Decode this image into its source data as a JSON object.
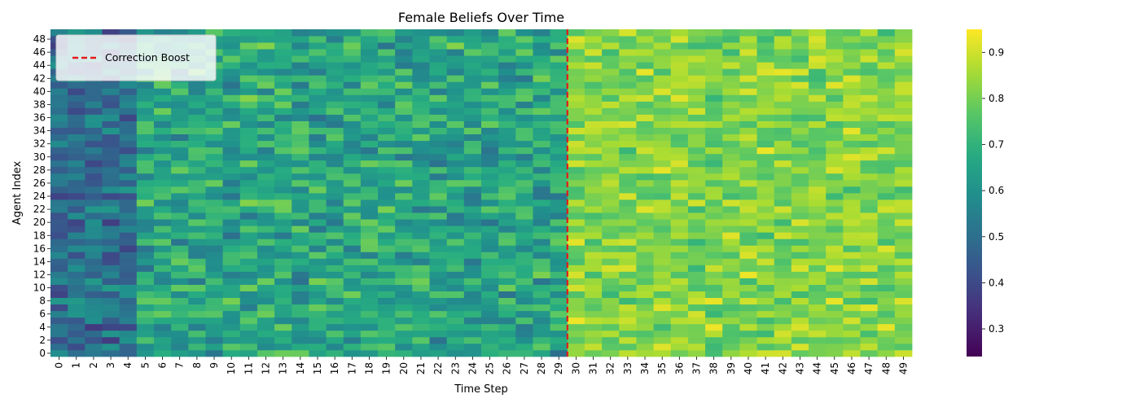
{
  "chart_data": {
    "type": "heatmap",
    "title": "Female Beliefs Over Time",
    "xlabel": "Time Step",
    "ylabel": "Agent Index",
    "x": [
      0,
      1,
      2,
      3,
      4,
      5,
      6,
      7,
      8,
      9,
      10,
      11,
      12,
      13,
      14,
      15,
      16,
      17,
      18,
      19,
      20,
      21,
      22,
      23,
      24,
      25,
      26,
      27,
      28,
      29,
      30,
      31,
      32,
      33,
      34,
      35,
      36,
      37,
      38,
      39,
      40,
      41,
      42,
      43,
      44,
      45,
      46,
      47,
      48,
      49
    ],
    "y": [
      0,
      1,
      2,
      3,
      4,
      5,
      6,
      7,
      8,
      9,
      10,
      11,
      12,
      13,
      14,
      15,
      16,
      17,
      18,
      19,
      20,
      21,
      22,
      23,
      24,
      25,
      26,
      27,
      28,
      29,
      30,
      31,
      32,
      33,
      34,
      35,
      36,
      37,
      38,
      39,
      40,
      41,
      42,
      43,
      44,
      45,
      46,
      47,
      48,
      49
    ],
    "ytick_labels": [
      "0",
      "2",
      "4",
      "6",
      "8",
      "10",
      "12",
      "14",
      "16",
      "18",
      "20",
      "22",
      "24",
      "26",
      "28",
      "30",
      "32",
      "34",
      "36",
      "38",
      "40",
      "42",
      "44",
      "46",
      "48"
    ],
    "value_range": [
      0.24,
      0.95
    ],
    "colorbar_ticks": [
      "0.3",
      "0.4",
      "0.5",
      "0.6",
      "0.7",
      "0.8",
      "0.9"
    ],
    "colorbar_tick_values": [
      0.3,
      0.4,
      0.5,
      0.6,
      0.7,
      0.8,
      0.9
    ],
    "colormap": "viridis",
    "summary_by_phase": {
      "steps_0_to_4_mean": 0.5,
      "steps_5_to_29_mean": 0.66,
      "steps_30_to_49_mean": 0.82
    },
    "annotation": {
      "type": "vline",
      "x": 29.5,
      "color": "#e41a1c",
      "style": "dashed",
      "label": "Correction Boost"
    },
    "legend": {
      "position": "top-left",
      "entries": [
        "Correction Boost"
      ]
    }
  }
}
